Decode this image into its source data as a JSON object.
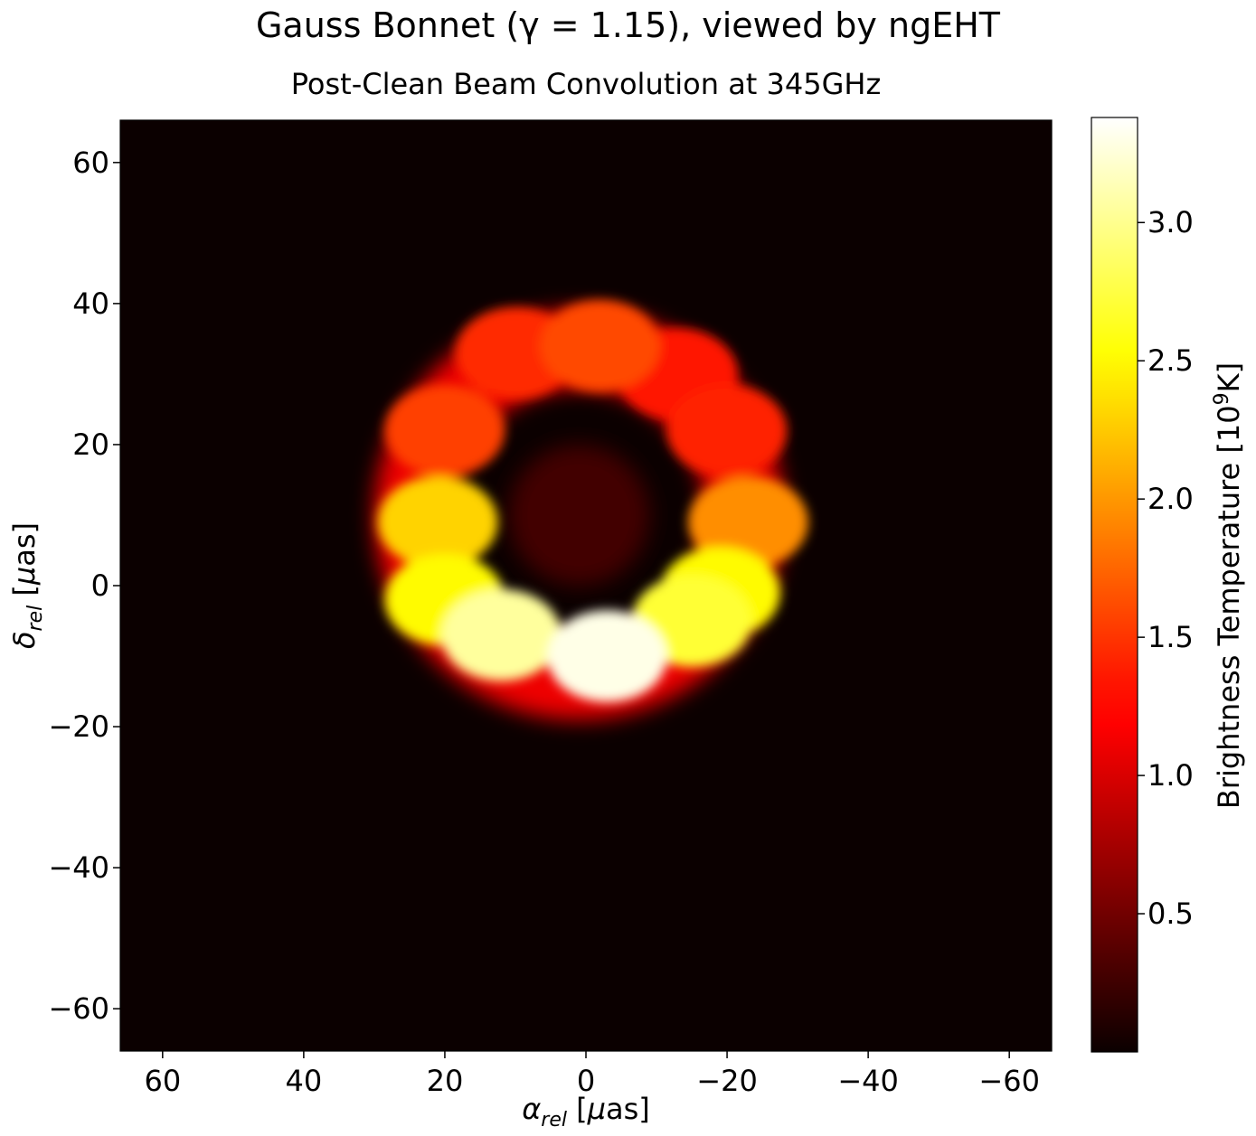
{
  "title": "Gauss Bonnet (γ = 1.15), viewed by ngEHT",
  "subtitle": "Post-Clean Beam Convolution at 345GHz",
  "chart_data": {
    "type": "heatmap",
    "colormap": "hot",
    "xlabel": "αrel [μas]",
    "ylabel": "δrel [μas]",
    "xlim": [
      66,
      -66
    ],
    "ylim": [
      -66,
      66
    ],
    "xticks": [
      60,
      40,
      20,
      0,
      -20,
      -40,
      -60
    ],
    "yticks": [
      60,
      40,
      20,
      0,
      -20,
      -40,
      -60
    ],
    "xtick_labels": [
      "60",
      "40",
      "20",
      "0",
      "−20",
      "−40",
      "−60"
    ],
    "ytick_labels": [
      "60",
      "40",
      "20",
      "0",
      "−20",
      "−40",
      "−60"
    ],
    "colorbar": {
      "label": "Brightness Temperature [10⁹K]",
      "range": [
        0.0,
        3.38
      ],
      "ticks": [
        0.5,
        1.0,
        1.5,
        2.0,
        2.5,
        3.0
      ],
      "tick_labels": [
        "0.5",
        "1.0",
        "1.5",
        "2.0",
        "2.5",
        "3.0"
      ]
    },
    "ring": {
      "center": [
        1,
        10
      ],
      "radius": 23.5,
      "peak_value": 3.38,
      "brightest_region": "bottom"
    },
    "hotspots": [
      {
        "x": -3,
        "y": -10,
        "value": 3.3
      },
      {
        "x": 12,
        "y": -7,
        "value": 3.05
      },
      {
        "x": -15,
        "y": -5,
        "value": 2.7
      },
      {
        "x": -19,
        "y": -1,
        "value": 2.5
      },
      {
        "x": 20,
        "y": -2,
        "value": 2.5
      },
      {
        "x": 21,
        "y": 9,
        "value": 2.3
      },
      {
        "x": -23,
        "y": 9,
        "value": 1.95
      },
      {
        "x": 20,
        "y": 22,
        "value": 1.55
      },
      {
        "x": -20,
        "y": 22,
        "value": 1.4
      },
      {
        "x": 10,
        "y": 33,
        "value": 1.45
      },
      {
        "x": -2,
        "y": 34,
        "value": 1.6
      },
      {
        "x": -13,
        "y": 30,
        "value": 1.35
      }
    ],
    "central_depression_value": 0.3
  }
}
